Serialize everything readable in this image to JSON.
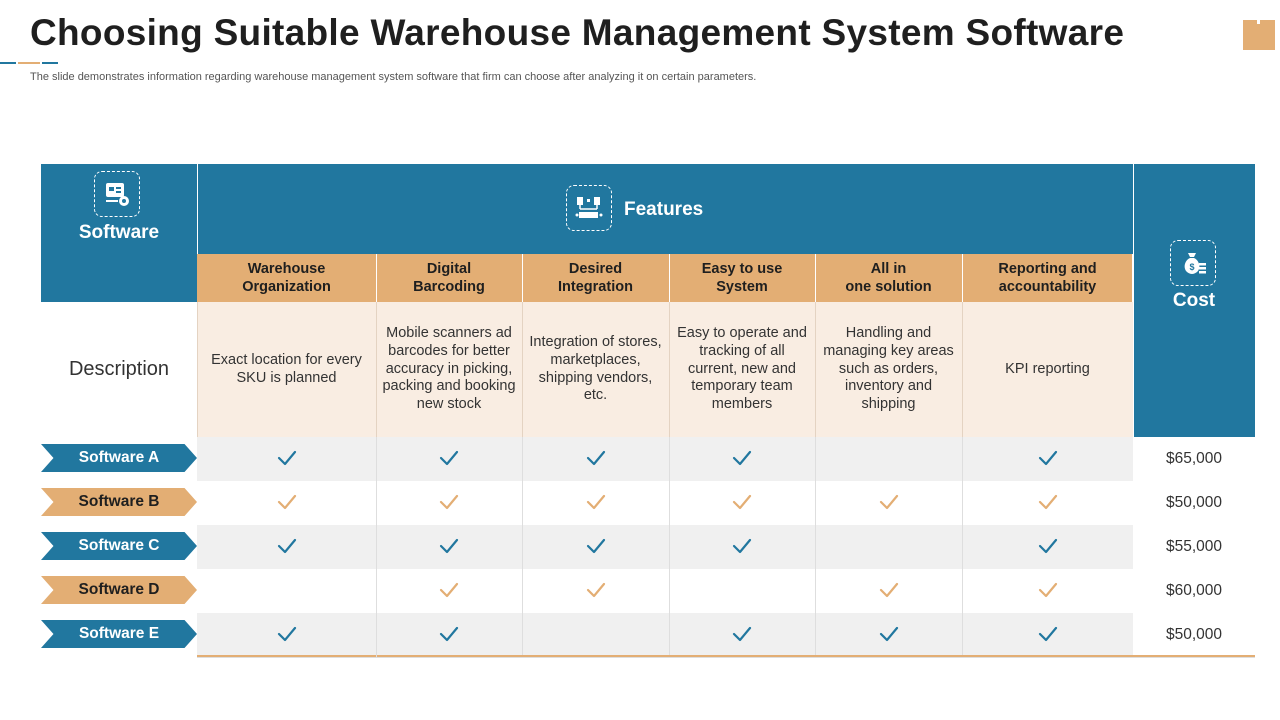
{
  "title": "Choosing Suitable Warehouse Management System Software",
  "subtitle": "The slide demonstrates information regarding warehouse management  system software that firm can choose after analyzing it on certain parameters.",
  "colors": {
    "blue": "#21779f",
    "orange": "#e3ae74",
    "description_bg": "#f9ede2",
    "row_gray": "#f0f0f0",
    "check_blue": "#21779f",
    "check_orange": "#e3ae74"
  },
  "header": {
    "software_label": "Software",
    "features_label": "Features",
    "cost_label": "Cost",
    "software_icon": "software-box-icon",
    "features_icon": "flowchart-icon",
    "cost_icon": "money-bag-icon"
  },
  "features": [
    {
      "name": "Warehouse\nOrganization",
      "description": "Exact location for every SKU is planned"
    },
    {
      "name": "Digital\nBarcoding",
      "description": "Mobile scanners ad barcodes for better accuracy in picking, packing and booking new stock"
    },
    {
      "name": "Desired\nIntegration",
      "description": "Integration of stores, marketplaces, shipping vendors, etc."
    },
    {
      "name": "Easy to use\nSystem",
      "description": "Easy to operate and tracking of all current, new and temporary team members"
    },
    {
      "name": "All  in\none solution",
      "description": "Handling and managing key areas such as orders, inventory and shipping"
    },
    {
      "name": "Reporting and\naccountability",
      "description": "KPI reporting"
    }
  ],
  "description_label": "Description",
  "software": [
    {
      "name": "Software A",
      "tag_color": "blue",
      "checks": [
        true,
        true,
        true,
        true,
        false,
        true
      ],
      "cost": "$65,000"
    },
    {
      "name": "Software B",
      "tag_color": "orange",
      "checks": [
        true,
        true,
        true,
        true,
        true,
        true
      ],
      "cost": "$50,000"
    },
    {
      "name": "Software C",
      "tag_color": "blue",
      "checks": [
        true,
        true,
        true,
        true,
        false,
        true
      ],
      "cost": "$55,000"
    },
    {
      "name": "Software D",
      "tag_color": "orange",
      "checks": [
        false,
        true,
        true,
        false,
        true,
        true
      ],
      "cost": "$60,000"
    },
    {
      "name": "Software E",
      "tag_color": "blue",
      "checks": [
        true,
        true,
        false,
        true,
        true,
        true
      ],
      "cost": "$50,000"
    }
  ]
}
